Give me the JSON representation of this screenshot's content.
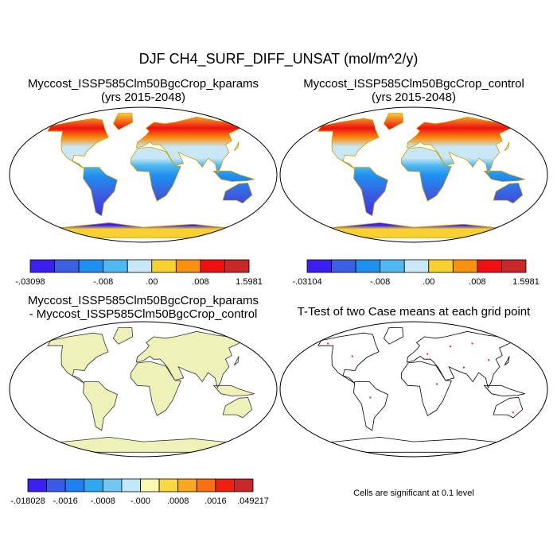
{
  "title": "DJF CH4_SURF_DIFF_UNSAT (mol/m^2/y)",
  "panels": [
    {
      "title_lines": [
        "Myccost_ISSP585Clm50BgcCrop_kparams",
        "(yrs 2015-2048)"
      ],
      "colorbar": {
        "colors": [
          "#3a1ff0",
          "#3a5fe0",
          "#1e90f0",
          "#50b8f0",
          "#c8e8f8",
          "#f8d030",
          "#f89010",
          "#f01010",
          "#c82828"
        ],
        "labels": [
          "-.03098",
          "-.008",
          ".00",
          ".008",
          "1.5981"
        ]
      }
    },
    {
      "title_lines": [
        "Myccost_ISSP585Clm50BgcCrop_control",
        "(yrs 2015-2048)"
      ],
      "colorbar": {
        "colors": [
          "#3a1ff0",
          "#3a5fe0",
          "#1e90f0",
          "#50b8f0",
          "#c8e8f8",
          "#f8d030",
          "#f89010",
          "#f01010",
          "#c82828"
        ],
        "labels": [
          "-.03104",
          "-.008",
          ".00",
          ".008",
          "1.5981"
        ]
      }
    },
    {
      "title_lines": [
        "Myccost_ISSP585Clm50BgcCrop_kparams",
        "- Myccost_ISSP585Clm50BgcCrop_control"
      ],
      "colorbar": {
        "colors": [
          "#3a1ff0",
          "#3a5ae8",
          "#1e80f0",
          "#30a8f0",
          "#70c8f0",
          "#c0e8f8",
          "#fafab0",
          "#f8d840",
          "#f8a820",
          "#f87010",
          "#f02010",
          "#c82828"
        ],
        "labels": [
          "-.018028",
          "-.0016",
          "-.0008",
          "-.000",
          ".0008",
          ".0016",
          ".049217"
        ]
      }
    },
    {
      "title_lines": [
        "T-Test of two Case means at each grid point"
      ],
      "note": "Cells are significant at 0.1 level"
    }
  ]
}
